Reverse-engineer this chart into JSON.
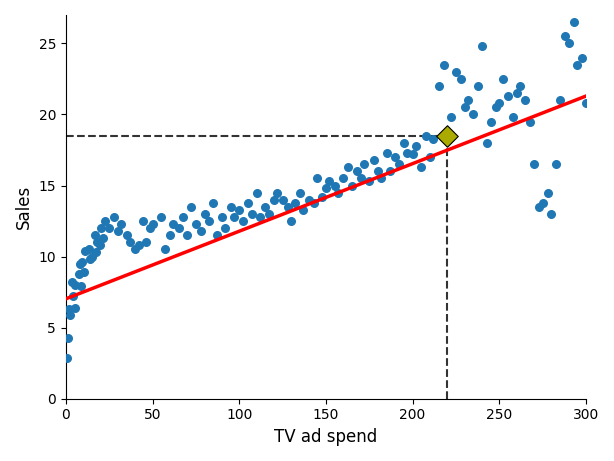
{
  "title": "",
  "xlabel": "TV ad spend",
  "ylabel": "Sales",
  "xlim": [
    0,
    300
  ],
  "ylim": [
    0,
    27
  ],
  "scatter_color": "#1f77b4",
  "scatter_size": 30,
  "line_color": "red",
  "line_intercept": 7.032594,
  "line_slope": 0.047537,
  "highlight_x": 220,
  "highlight_y": 18.48,
  "highlight_color": "#aaaa00",
  "highlight_marker": "D",
  "highlight_size": 120,
  "dashed_color": "#333333",
  "xticks": [
    0,
    50,
    100,
    150,
    200,
    250,
    300
  ],
  "yticks": [
    0,
    5,
    10,
    15,
    20,
    25
  ],
  "scatter_x": [
    0.7,
    1.0,
    1.5,
    2.1,
    3.5,
    4.2,
    5.0,
    5.5,
    7.8,
    8.1,
    8.7,
    9.0,
    10.5,
    11.0,
    13.2,
    14.0,
    15.0,
    16.5,
    17.2,
    18.0,
    19.5,
    20.0,
    21.3,
    22.8,
    25.0,
    27.5,
    30.0,
    32.0,
    35.5,
    37.0,
    40.0,
    42.0,
    44.5,
    46.0,
    48.5,
    50.0,
    55.0,
    57.0,
    60.0,
    62.0,
    65.0,
    67.5,
    70.0,
    72.0,
    75.0,
    78.0,
    80.0,
    82.5,
    85.0,
    87.0,
    90.0,
    92.0,
    95.0,
    97.0,
    100.0,
    102.0,
    105.0,
    107.5,
    110.0,
    112.0,
    115.0,
    117.0,
    120.0,
    122.0,
    125.0,
    128.0,
    130.0,
    132.0,
    135.0,
    137.0,
    140.0,
    143.0,
    145.0,
    148.0,
    150.0,
    152.0,
    155.0,
    157.0,
    160.0,
    163.0,
    165.0,
    168.0,
    170.0,
    172.0,
    175.0,
    178.0,
    180.0,
    182.0,
    185.0,
    187.0,
    190.0,
    192.0,
    195.0,
    197.0,
    200.0,
    202.0,
    205.0,
    208.0,
    210.0,
    212.0,
    215.0,
    218.0,
    222.0,
    225.0,
    228.0,
    230.0,
    232.0,
    235.0,
    238.0,
    240.0,
    243.0,
    245.0,
    248.0,
    250.0,
    252.0,
    255.0,
    258.0,
    260.0,
    262.0,
    265.0,
    268.0,
    270.0,
    273.0,
    275.0,
    278.0,
    280.0,
    283.0,
    285.0,
    288.0,
    290.0,
    293.0,
    295.0,
    298.0,
    300.0
  ],
  "scatter_y": [
    2.9,
    4.3,
    6.3,
    5.9,
    8.2,
    7.2,
    8.0,
    6.4,
    8.8,
    9.5,
    7.9,
    9.6,
    8.9,
    10.4,
    10.5,
    9.8,
    10.0,
    11.5,
    10.3,
    11.0,
    10.8,
    12.0,
    11.3,
    12.5,
    12.0,
    12.8,
    11.8,
    12.3,
    11.5,
    11.0,
    10.5,
    10.8,
    12.5,
    11.0,
    12.0,
    12.3,
    12.8,
    10.5,
    11.5,
    12.3,
    12.0,
    12.8,
    11.5,
    13.5,
    12.3,
    11.8,
    13.0,
    12.5,
    13.8,
    11.5,
    12.8,
    12.0,
    13.5,
    12.8,
    13.3,
    12.5,
    13.8,
    13.0,
    14.5,
    12.8,
    13.5,
    13.0,
    14.0,
    14.5,
    14.0,
    13.5,
    12.5,
    13.8,
    14.5,
    13.3,
    14.0,
    13.8,
    15.5,
    14.2,
    14.8,
    15.3,
    15.0,
    14.5,
    15.5,
    16.3,
    15.0,
    16.0,
    15.5,
    16.5,
    15.3,
    16.8,
    16.0,
    15.5,
    17.3,
    16.0,
    17.0,
    16.5,
    18.0,
    17.3,
    17.2,
    17.8,
    16.3,
    18.5,
    17.0,
    18.3,
    22.0,
    23.5,
    19.8,
    23.0,
    22.5,
    20.5,
    21.0,
    20.0,
    22.0,
    24.8,
    18.0,
    19.5,
    20.5,
    20.8,
    22.5,
    21.3,
    19.8,
    21.5,
    22.0,
    21.0,
    19.5,
    16.5,
    13.5,
    13.8,
    14.5,
    13.0,
    16.5,
    21.0,
    25.5,
    25.0,
    26.5,
    23.5,
    24.0,
    20.8
  ]
}
